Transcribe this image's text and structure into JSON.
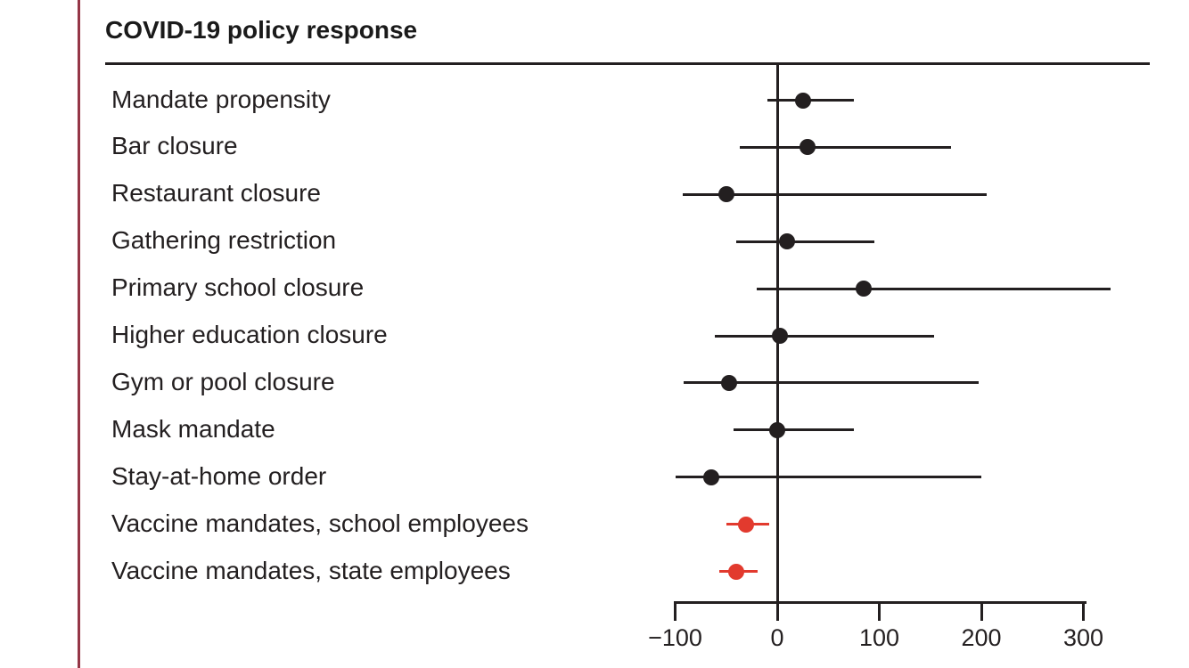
{
  "figure": {
    "accent_bar_color": "#953646",
    "ink_color": "#231f20",
    "background_color": "#ffffff"
  },
  "chart_data": {
    "type": "scatter",
    "subtype": "forest-plot",
    "title": "COVID-19 policy response",
    "xlabel": "",
    "ylabel": "",
    "xlim": [
      -100,
      327
    ],
    "x_ticks": [
      -100,
      0,
      100,
      200,
      300
    ],
    "x_tick_labels": [
      "−100",
      "0",
      "100",
      "200",
      "300"
    ],
    "reference_line_x": 0,
    "grid": false,
    "legend": "none",
    "colors": {
      "default": "#231f20",
      "highlight": "#e23a2e"
    },
    "rows": [
      {
        "label": "Mandate propensity",
        "estimate": 25,
        "ci_low": -10,
        "ci_high": 75,
        "highlighted": false
      },
      {
        "label": "Bar closure",
        "estimate": 30,
        "ci_low": -37,
        "ci_high": 170,
        "highlighted": false
      },
      {
        "label": "Restaurant closure",
        "estimate": -50,
        "ci_low": -93,
        "ci_high": 205,
        "highlighted": false
      },
      {
        "label": "Gathering restriction",
        "estimate": 10,
        "ci_low": -40,
        "ci_high": 95,
        "highlighted": false
      },
      {
        "label": "Primary school closure",
        "estimate": 85,
        "ci_low": -20,
        "ci_high": 327,
        "highlighted": false
      },
      {
        "label": "Higher education closure",
        "estimate": 3,
        "ci_low": -61,
        "ci_high": 154,
        "highlighted": false
      },
      {
        "label": "Gym or pool closure",
        "estimate": -47,
        "ci_low": -92,
        "ci_high": 197,
        "highlighted": false
      },
      {
        "label": "Mask mandate",
        "estimate": 0,
        "ci_low": -43,
        "ci_high": 75,
        "highlighted": false
      },
      {
        "label": "Stay-at-home order",
        "estimate": -65,
        "ci_low": -100,
        "ci_high": 200,
        "highlighted": false
      },
      {
        "label": "Vaccine mandates, school employees",
        "estimate": -31,
        "ci_low": -50,
        "ci_high": -8,
        "highlighted": true
      },
      {
        "label": "Vaccine mandates, state employees",
        "estimate": -40,
        "ci_low": -57,
        "ci_high": -19,
        "highlighted": true
      }
    ]
  }
}
